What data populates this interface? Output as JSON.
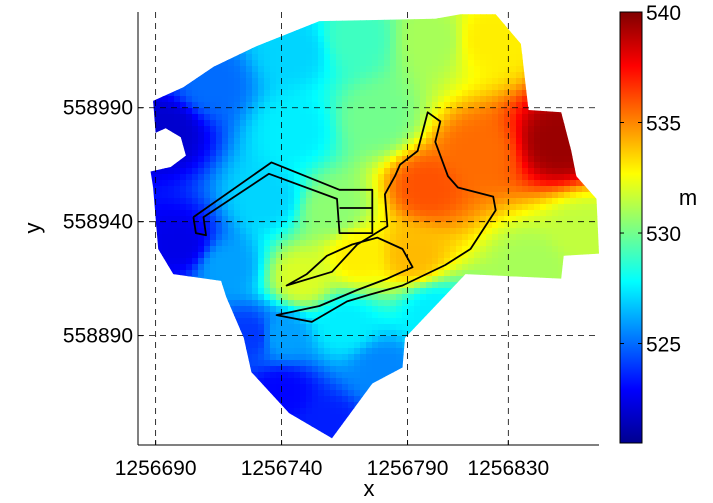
{
  "chart_data": {
    "type": "heatmap",
    "title": "",
    "xlabel": "x",
    "ylabel": "y",
    "xlim": [
      1256683,
      1256866
    ],
    "ylim": [
      558842,
      559032
    ],
    "x_ticks": [
      {
        "value": 1256690,
        "label": "1256690"
      },
      {
        "value": 1256740,
        "label": "1256740"
      },
      {
        "value": 1256790,
        "label": "1256790"
      },
      {
        "value": 1256830,
        "label": "1256830"
      }
    ],
    "y_ticks": [
      {
        "value": 558890,
        "label": "558890"
      },
      {
        "value": 558940,
        "label": "558940"
      },
      {
        "value": 558990,
        "label": "558990"
      }
    ],
    "grid": "dashed",
    "colormap": "jet",
    "colorbar": {
      "label": "m",
      "min": 520.5,
      "max": 540,
      "ticks": [
        {
          "value": 525,
          "label": "525"
        },
        {
          "value": 530,
          "label": "530"
        },
        {
          "value": 535,
          "label": "535"
        },
        {
          "value": 540,
          "label": "540"
        }
      ]
    },
    "domain_boundary": [
      [
        1256755,
        559028
      ],
      [
        1256801,
        559029
      ],
      [
        1256811,
        559031
      ],
      [
        1256825,
        559031
      ],
      [
        1256835,
        559018
      ],
      [
        1256838,
        558989
      ],
      [
        1256851,
        558988
      ],
      [
        1256855,
        558971
      ],
      [
        1256857,
        558960
      ],
      [
        1256865,
        558950
      ],
      [
        1256866,
        558926
      ],
      [
        1256852,
        558925
      ],
      [
        1256851,
        558915
      ],
      [
        1256813,
        558917
      ],
      [
        1256789,
        558889
      ],
      [
        1256788,
        558876
      ],
      [
        1256776,
        558869
      ],
      [
        1256760,
        558845
      ],
      [
        1256743,
        558856
      ],
      [
        1256728,
        558874
      ],
      [
        1256725,
        558889
      ],
      [
        1256718,
        558907
      ],
      [
        1256716,
        558914
      ],
      [
        1256697,
        558917
      ],
      [
        1256691,
        558928
      ],
      [
        1256689,
        558955
      ],
      [
        1256688,
        558962
      ],
      [
        1256696,
        558964
      ],
      [
        1256702,
        558969
      ],
      [
        1256700,
        558977
      ],
      [
        1256694,
        558981
      ],
      [
        1256690,
        558979
      ],
      [
        1256689,
        558993
      ],
      [
        1256701,
        558999
      ],
      [
        1256713,
        559008
      ],
      [
        1256730,
        559017
      ]
    ],
    "elevation_samples": [
      {
        "x": 1256850,
        "y": 558975,
        "z": 539.5
      },
      {
        "x": 1256818,
        "y": 558970,
        "z": 535.5
      },
      {
        "x": 1256798,
        "y": 558955,
        "z": 536
      },
      {
        "x": 1256822,
        "y": 559020,
        "z": 533
      },
      {
        "x": 1256800,
        "y": 559020,
        "z": 531
      },
      {
        "x": 1256792,
        "y": 558925,
        "z": 534
      },
      {
        "x": 1256770,
        "y": 558925,
        "z": 533
      },
      {
        "x": 1256748,
        "y": 558915,
        "z": 532
      },
      {
        "x": 1256778,
        "y": 558985,
        "z": 530
      },
      {
        "x": 1256770,
        "y": 559020,
        "z": 529
      },
      {
        "x": 1256745,
        "y": 559015,
        "z": 527
      },
      {
        "x": 1256745,
        "y": 558980,
        "z": 527.5
      },
      {
        "x": 1256712,
        "y": 559000,
        "z": 525
      },
      {
        "x": 1256695,
        "y": 558980,
        "z": 522
      },
      {
        "x": 1256700,
        "y": 558930,
        "z": 522.5
      },
      {
        "x": 1256718,
        "y": 558920,
        "z": 526
      },
      {
        "x": 1256735,
        "y": 558950,
        "z": 527
      },
      {
        "x": 1256760,
        "y": 558945,
        "z": 530.5
      },
      {
        "x": 1256800,
        "y": 558900,
        "z": 527.5
      },
      {
        "x": 1256840,
        "y": 558920,
        "z": 531
      },
      {
        "x": 1256860,
        "y": 558935,
        "z": 531.5
      },
      {
        "x": 1256765,
        "y": 558895,
        "z": 527.5
      },
      {
        "x": 1256740,
        "y": 558890,
        "z": 526
      },
      {
        "x": 1256740,
        "y": 558865,
        "z": 523
      },
      {
        "x": 1256758,
        "y": 558850,
        "z": 523.5
      },
      {
        "x": 1256780,
        "y": 558875,
        "z": 525.5
      },
      {
        "x": 1256728,
        "y": 558890,
        "z": 524
      }
    ],
    "building_outline": [
      [
        1256705,
        558942
      ],
      [
        1256736,
        558966
      ],
      [
        1256763,
        558954
      ],
      [
        1256776,
        558954
      ],
      [
        1256776,
        558935
      ],
      [
        1256763,
        558935
      ],
      [
        1256762,
        558950
      ],
      [
        1256735,
        558961
      ],
      [
        1256709,
        558942
      ],
      [
        1256710,
        558934
      ],
      [
        1256706,
        558935
      ],
      [
        1256705,
        558942
      ]
    ],
    "building_inner_line": [
      [
        1256763,
        558946
      ],
      [
        1256776,
        558946
      ]
    ],
    "river_outline": [
      [
        1256787,
        558965
      ],
      [
        1256794,
        558971
      ],
      [
        1256798,
        558988
      ],
      [
        1256803,
        558984
      ],
      [
        1256801,
        558975
      ],
      [
        1256806,
        558960
      ],
      [
        1256810,
        558955
      ],
      [
        1256824,
        558951
      ],
      [
        1256825,
        558945
      ],
      [
        1256815,
        558928
      ],
      [
        1256805,
        558921
      ],
      [
        1256788,
        558912
      ],
      [
        1256775,
        558908
      ],
      [
        1256766,
        558905
      ],
      [
        1256752,
        558896
      ],
      [
        1256738,
        558899
      ],
      [
        1256755,
        558903
      ],
      [
        1256770,
        558910
      ],
      [
        1256782,
        558915
      ],
      [
        1256792,
        558920
      ],
      [
        1256788,
        558928
      ],
      [
        1256778,
        558933
      ],
      [
        1256768,
        558930
      ],
      [
        1256758,
        558925
      ],
      [
        1256750,
        558917
      ],
      [
        1256742,
        558912
      ],
      [
        1256760,
        558918
      ],
      [
        1256770,
        558930
      ],
      [
        1256782,
        558938
      ],
      [
        1256781,
        558952
      ],
      [
        1256785,
        558960
      ],
      [
        1256787,
        558965
      ]
    ]
  }
}
